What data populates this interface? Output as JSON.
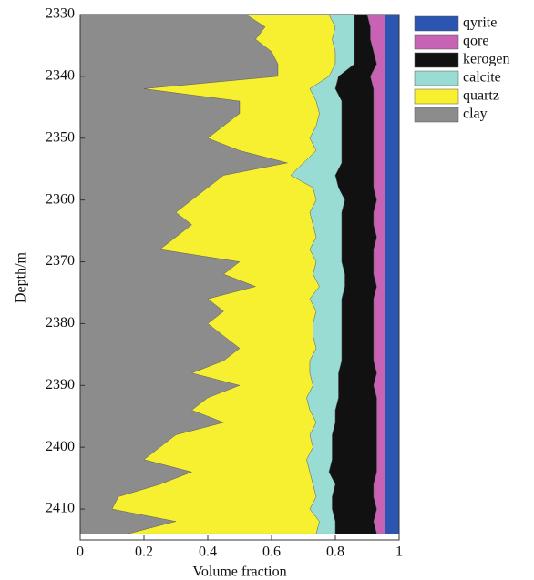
{
  "chart_data": {
    "type": "stacked_area_horizontal",
    "x_label": "Volume fraction",
    "y_label": "Depth/m",
    "x": [
      2330,
      2332,
      2334,
      2336,
      2338,
      2340,
      2342,
      2344,
      2346,
      2348,
      2350,
      2352,
      2354,
      2356,
      2358,
      2360,
      2362,
      2364,
      2366,
      2368,
      2370,
      2372,
      2374,
      2376,
      2378,
      2380,
      2382,
      2384,
      2386,
      2388,
      2390,
      2392,
      2394,
      2396,
      2398,
      2400,
      2402,
      2404,
      2406,
      2408,
      2410,
      2412,
      2414
    ],
    "series": [
      {
        "name": "clay",
        "color": "#8c8c8c",
        "values": [
          0.52,
          0.58,
          0.55,
          0.6,
          0.62,
          0.62,
          0.2,
          0.5,
          0.5,
          0.45,
          0.4,
          0.5,
          0.65,
          0.45,
          0.4,
          0.35,
          0.3,
          0.35,
          0.3,
          0.25,
          0.5,
          0.45,
          0.55,
          0.4,
          0.45,
          0.4,
          0.45,
          0.5,
          0.45,
          0.35,
          0.5,
          0.4,
          0.35,
          0.45,
          0.3,
          0.25,
          0.2,
          0.35,
          0.25,
          0.12,
          0.1,
          0.3,
          0.15
        ]
      },
      {
        "name": "quartz",
        "color": "#f7f030",
        "values": [
          0.26,
          0.22,
          0.24,
          0.2,
          0.18,
          0.16,
          0.52,
          0.24,
          0.25,
          0.29,
          0.32,
          0.24,
          0.05,
          0.21,
          0.33,
          0.39,
          0.42,
          0.38,
          0.44,
          0.47,
          0.24,
          0.28,
          0.2,
          0.32,
          0.29,
          0.33,
          0.28,
          0.24,
          0.27,
          0.37,
          0.23,
          0.31,
          0.37,
          0.29,
          0.42,
          0.48,
          0.51,
          0.37,
          0.48,
          0.62,
          0.62,
          0.45,
          0.59
        ]
      },
      {
        "name": "calcite",
        "color": "#98dcd4",
        "values": [
          0.08,
          0.06,
          0.07,
          0.06,
          0.06,
          0.03,
          0.08,
          0.08,
          0.07,
          0.08,
          0.1,
          0.08,
          0.12,
          0.14,
          0.08,
          0.09,
          0.1,
          0.09,
          0.08,
          0.1,
          0.08,
          0.1,
          0.08,
          0.1,
          0.08,
          0.09,
          0.09,
          0.08,
          0.1,
          0.09,
          0.08,
          0.1,
          0.08,
          0.06,
          0.07,
          0.06,
          0.08,
          0.06,
          0.07,
          0.05,
          0.07,
          0.05,
          0.06
        ]
      },
      {
        "name": "kerogen",
        "color": "#111111",
        "values": [
          0.04,
          0.05,
          0.05,
          0.06,
          0.07,
          0.1,
          0.12,
          0.1,
          0.1,
          0.1,
          0.1,
          0.1,
          0.1,
          0.12,
          0.11,
          0.1,
          0.1,
          0.1,
          0.11,
          0.1,
          0.1,
          0.09,
          0.1,
          0.1,
          0.1,
          0.1,
          0.1,
          0.1,
          0.1,
          0.12,
          0.11,
          0.12,
          0.13,
          0.13,
          0.14,
          0.14,
          0.14,
          0.15,
          0.12,
          0.13,
          0.14,
          0.12,
          0.13
        ]
      },
      {
        "name": "qore",
        "color": "#c862b5",
        "values": [
          0.055,
          0.045,
          0.045,
          0.035,
          0.025,
          0.045,
          0.035,
          0.035,
          0.035,
          0.035,
          0.035,
          0.035,
          0.035,
          0.035,
          0.035,
          0.025,
          0.035,
          0.035,
          0.025,
          0.035,
          0.035,
          0.035,
          0.025,
          0.035,
          0.035,
          0.035,
          0.035,
          0.035,
          0.035,
          0.025,
          0.035,
          0.025,
          0.025,
          0.025,
          0.025,
          0.025,
          0.025,
          0.025,
          0.035,
          0.035,
          0.025,
          0.035,
          0.025
        ]
      },
      {
        "name": "qyrite",
        "color": "#2a55b0",
        "values": [
          0.045,
          0.045,
          0.045,
          0.045,
          0.045,
          0.045,
          0.045,
          0.045,
          0.045,
          0.045,
          0.045,
          0.045,
          0.045,
          0.045,
          0.045,
          0.045,
          0.045,
          0.045,
          0.045,
          0.045,
          0.045,
          0.045,
          0.045,
          0.045,
          0.045,
          0.045,
          0.045,
          0.045,
          0.045,
          0.045,
          0.045,
          0.045,
          0.045,
          0.045,
          0.045,
          0.045,
          0.045,
          0.045,
          0.045,
          0.045,
          0.045,
          0.045,
          0.045
        ]
      }
    ],
    "xlim": [
      0,
      1
    ],
    "xticks": [
      0,
      0.2,
      0.4,
      0.6,
      0.8,
      1
    ],
    "ylim": [
      2330,
      2415
    ],
    "yticks": [
      2330,
      2340,
      2350,
      2360,
      2370,
      2380,
      2390,
      2400,
      2410
    ],
    "y_inverted": true,
    "legend": "right"
  }
}
